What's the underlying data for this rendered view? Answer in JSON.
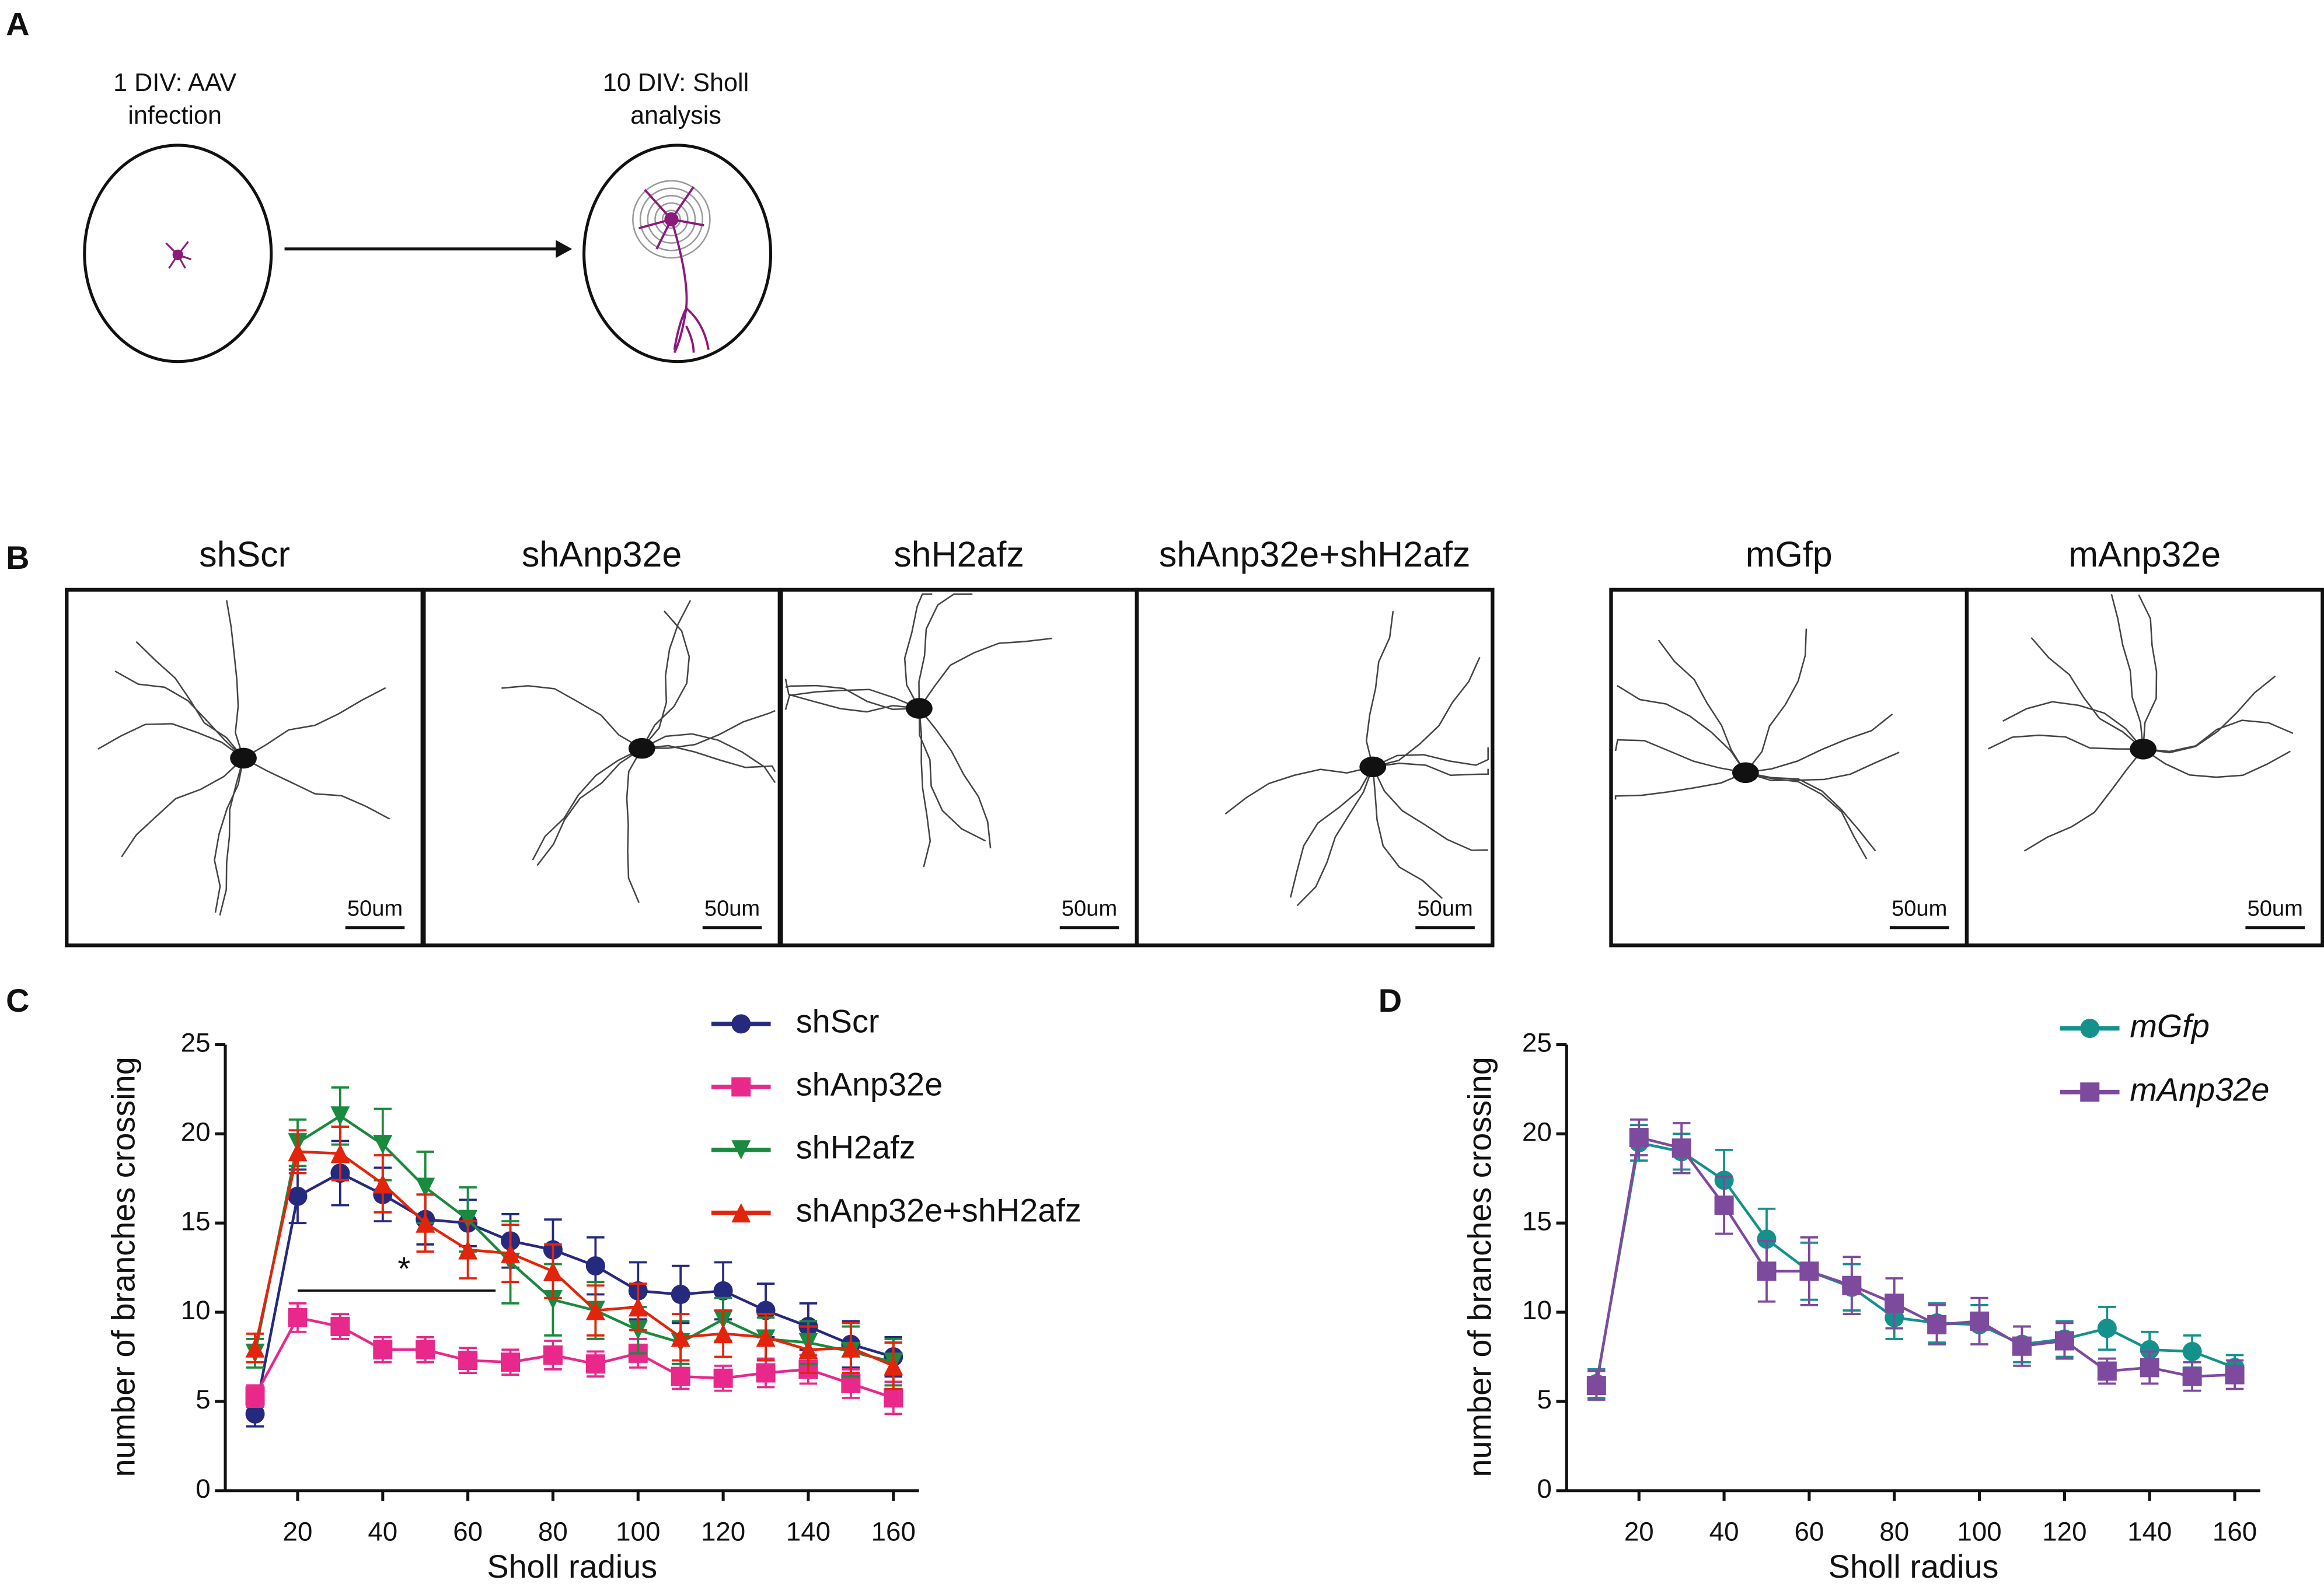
{
  "panels": {
    "a": "A",
    "b": "B",
    "c": "C",
    "d": "D"
  },
  "diagram": {
    "step1": [
      "1 DIV: AAV",
      "infection"
    ],
    "step2": [
      "10 DIV: Sholl",
      "analysis"
    ]
  },
  "images": {
    "titles": [
      "shScr",
      "shAnp32e",
      "shH2afz",
      "shAnp32e+shH2afz",
      "mGfp",
      "mAnp32e"
    ],
    "scale_bar": "50um"
  },
  "chart_data": [
    {
      "type": "line",
      "xlabel": "Sholl radius",
      "ylabel": "number of branches crossing",
      "x": [
        10,
        20,
        30,
        40,
        50,
        60,
        70,
        80,
        90,
        100,
        110,
        120,
        130,
        140,
        150,
        160
      ],
      "xlim": [
        3,
        166
      ],
      "ylim": [
        0,
        25
      ],
      "xticks": [
        20,
        40,
        60,
        80,
        100,
        120,
        140,
        160
      ],
      "yticks": [
        0,
        5,
        10,
        15,
        20,
        25
      ],
      "annotation": "*",
      "series": [
        {
          "name": "shScr",
          "color": "#262a7e",
          "marker": "circle",
          "values": [
            4.3,
            16.5,
            17.8,
            16.6,
            15.2,
            15.0,
            14.0,
            13.5,
            12.6,
            11.2,
            11.0,
            11.2,
            10.1,
            9.2,
            8.2,
            7.5
          ],
          "errors": [
            0.7,
            1.5,
            1.8,
            1.5,
            1.4,
            1.3,
            1.5,
            1.7,
            1.6,
            1.6,
            1.6,
            1.6,
            1.5,
            1.3,
            1.3,
            1.1
          ]
        },
        {
          "name": "shAnp32e",
          "color": "#e8288a",
          "marker": "square",
          "values": [
            5.3,
            9.7,
            9.2,
            7.9,
            7.9,
            7.3,
            7.2,
            7.6,
            7.1,
            7.7,
            6.4,
            6.3,
            6.6,
            6.8,
            6.0,
            5.2
          ],
          "errors": [
            0.6,
            0.8,
            0.7,
            0.7,
            0.7,
            0.7,
            0.7,
            0.8,
            0.7,
            0.8,
            0.7,
            0.7,
            0.8,
            0.8,
            0.8,
            0.9
          ]
        },
        {
          "name": "shH2afz",
          "color": "#1a8a3e",
          "marker": "triangle-down",
          "values": [
            7.7,
            19.5,
            21.0,
            19.4,
            17.0,
            15.2,
            12.8,
            10.7,
            10.1,
            9.0,
            8.3,
            9.6,
            8.5,
            8.3,
            7.8,
            7.2
          ],
          "errors": [
            0.8,
            1.3,
            1.6,
            2.0,
            2.0,
            1.8,
            2.3,
            2.0,
            1.6,
            1.3,
            1.2,
            1.2,
            1.2,
            1.2,
            1.4,
            1.3
          ]
        },
        {
          "name": "shAnp32e+shH2afz",
          "color": "#e3240c",
          "marker": "triangle-up",
          "values": [
            8.0,
            19.0,
            18.9,
            17.2,
            15.0,
            13.5,
            13.3,
            12.3,
            10.1,
            10.3,
            8.6,
            8.8,
            8.6,
            7.9,
            8.0,
            7.0
          ],
          "errors": [
            0.8,
            1.2,
            1.5,
            1.6,
            1.6,
            1.6,
            1.6,
            1.5,
            1.4,
            1.3,
            1.3,
            1.3,
            1.3,
            1.3,
            1.4,
            1.3
          ]
        }
      ]
    },
    {
      "type": "line",
      "xlabel": "Sholl radius",
      "ylabel": "number of branches crossing",
      "x": [
        10,
        20,
        30,
        40,
        50,
        60,
        70,
        80,
        90,
        100,
        110,
        120,
        130,
        140,
        150,
        160
      ],
      "xlim": [
        3,
        166
      ],
      "ylim": [
        0,
        25
      ],
      "xticks": [
        20,
        40,
        60,
        80,
        100,
        120,
        140,
        160
      ],
      "yticks": [
        0,
        5,
        10,
        15,
        20,
        25
      ],
      "series": [
        {
          "name": "mGfp",
          "color": "#15918c",
          "marker": "circle",
          "values": [
            6.0,
            19.5,
            19.0,
            17.4,
            14.1,
            12.3,
            11.4,
            9.7,
            9.4,
            9.3,
            8.2,
            8.5,
            9.1,
            7.9,
            7.8,
            6.9
          ],
          "errors": [
            0.8,
            1.0,
            1.0,
            1.7,
            1.7,
            1.6,
            1.3,
            1.2,
            1.1,
            1.1,
            1.0,
            1.0,
            1.2,
            1.0,
            0.9,
            0.7
          ]
        },
        {
          "name": "mAnp32e",
          "color": "#7d4a9e",
          "marker": "square",
          "values": [
            5.9,
            19.8,
            19.2,
            16.0,
            12.3,
            12.3,
            11.5,
            10.5,
            9.3,
            9.5,
            8.1,
            8.4,
            6.7,
            6.9,
            6.4,
            6.5
          ],
          "errors": [
            0.8,
            1.0,
            1.4,
            1.6,
            1.7,
            1.9,
            1.6,
            1.4,
            1.1,
            1.3,
            1.1,
            1.0,
            0.7,
            0.9,
            0.8,
            0.8
          ]
        }
      ]
    }
  ]
}
